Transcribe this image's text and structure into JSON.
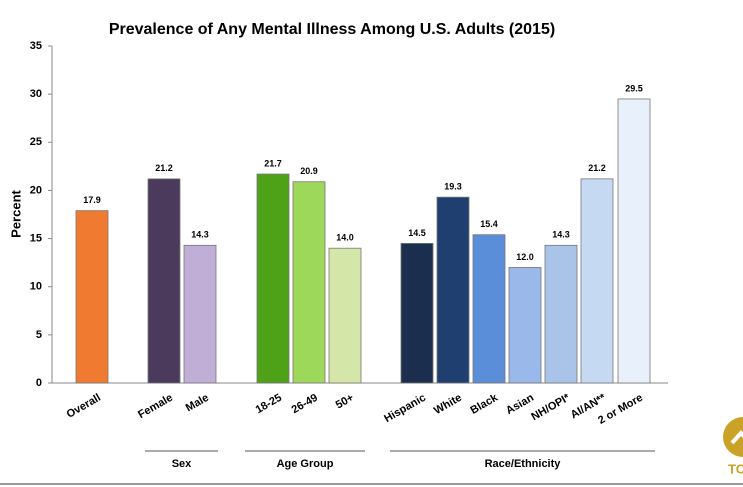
{
  "chart_data": {
    "type": "bar",
    "title": "Prevalence of Any Mental Illness Among U.S. Adults (2015)",
    "y_label": "Percent",
    "categories": [
      "Overall",
      "Female",
      "Male",
      "18-25",
      "26-49",
      "50+",
      "Hispanic",
      "White",
      "Black",
      "Asian",
      "NH/OPI*",
      "AI/AN**",
      "2 or More"
    ],
    "values": [
      17.9,
      21.2,
      14.3,
      21.7,
      20.9,
      14.0,
      14.5,
      19.3,
      15.4,
      12.0,
      14.3,
      21.2,
      29.5
    ],
    "value_labels": [
      "17.9",
      "21.2",
      "14.3",
      "21.7",
      "20.9",
      "14.0",
      "14.5",
      "19.3",
      "15.4",
      "12.0",
      "14.3",
      "21.2",
      "29.5"
    ],
    "colors": [
      "#f07a30",
      "#4b3a5c",
      "#c0aed6",
      "#4ea218",
      "#9ed85a",
      "#d4e6a8",
      "#1b2e4e",
      "#1f3f70",
      "#5b8ed8",
      "#9ab8ea",
      "#a9c4e8",
      "#c5d9f2",
      "#e8f0fb"
    ],
    "groups": [
      "Sex",
      "Age Group",
      "Race/Ethnicity"
    ],
    "ylim": [
      0,
      35
    ],
    "yticks": [
      0,
      5,
      10,
      15,
      20,
      25,
      30,
      35
    ],
    "grid": false
  },
  "back_to_top": "TO"
}
